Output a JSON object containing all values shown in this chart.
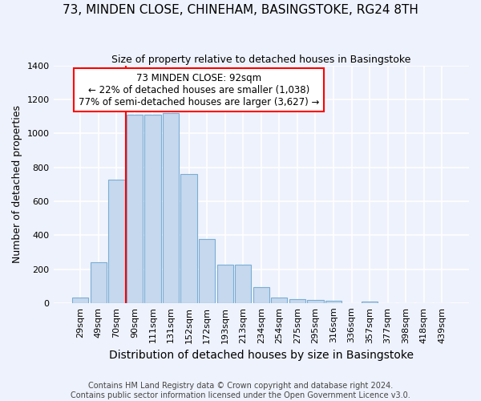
{
  "title": "73, MINDEN CLOSE, CHINEHAM, BASINGSTOKE, RG24 8TH",
  "subtitle": "Size of property relative to detached houses in Basingstoke",
  "xlabel": "Distribution of detached houses by size in Basingstoke",
  "ylabel": "Number of detached properties",
  "footer1": "Contains HM Land Registry data © Crown copyright and database right 2024.",
  "footer2": "Contains public sector information licensed under the Open Government Licence v3.0.",
  "categories": [
    "29sqm",
    "49sqm",
    "70sqm",
    "90sqm",
    "111sqm",
    "131sqm",
    "152sqm",
    "172sqm",
    "193sqm",
    "213sqm",
    "234sqm",
    "254sqm",
    "275sqm",
    "295sqm",
    "316sqm",
    "336sqm",
    "357sqm",
    "377sqm",
    "398sqm",
    "418sqm",
    "439sqm"
  ],
  "values": [
    30,
    240,
    725,
    1110,
    1110,
    1120,
    760,
    375,
    225,
    225,
    95,
    30,
    25,
    20,
    15,
    0,
    10,
    0,
    0,
    0,
    0
  ],
  "bar_color": "#c5d8ee",
  "bar_edge_color": "#7aadd4",
  "background_color": "#eef2fc",
  "grid_color": "#ffffff",
  "annotation_text1": "73 MINDEN CLOSE: 92sqm",
  "annotation_text2": "← 22% of detached houses are smaller (1,038)",
  "annotation_text3": "77% of semi-detached houses are larger (3,627) →",
  "red_line_bin": 3,
  "ylim": [
    0,
    1400
  ],
  "yticks": [
    0,
    200,
    400,
    600,
    800,
    1000,
    1200,
    1400
  ],
  "title_fontsize": 11,
  "subtitle_fontsize": 9,
  "ylabel_fontsize": 9,
  "xlabel_fontsize": 10,
  "annotation_fontsize": 8.5,
  "footer_fontsize": 7,
  "tick_fontsize": 8
}
